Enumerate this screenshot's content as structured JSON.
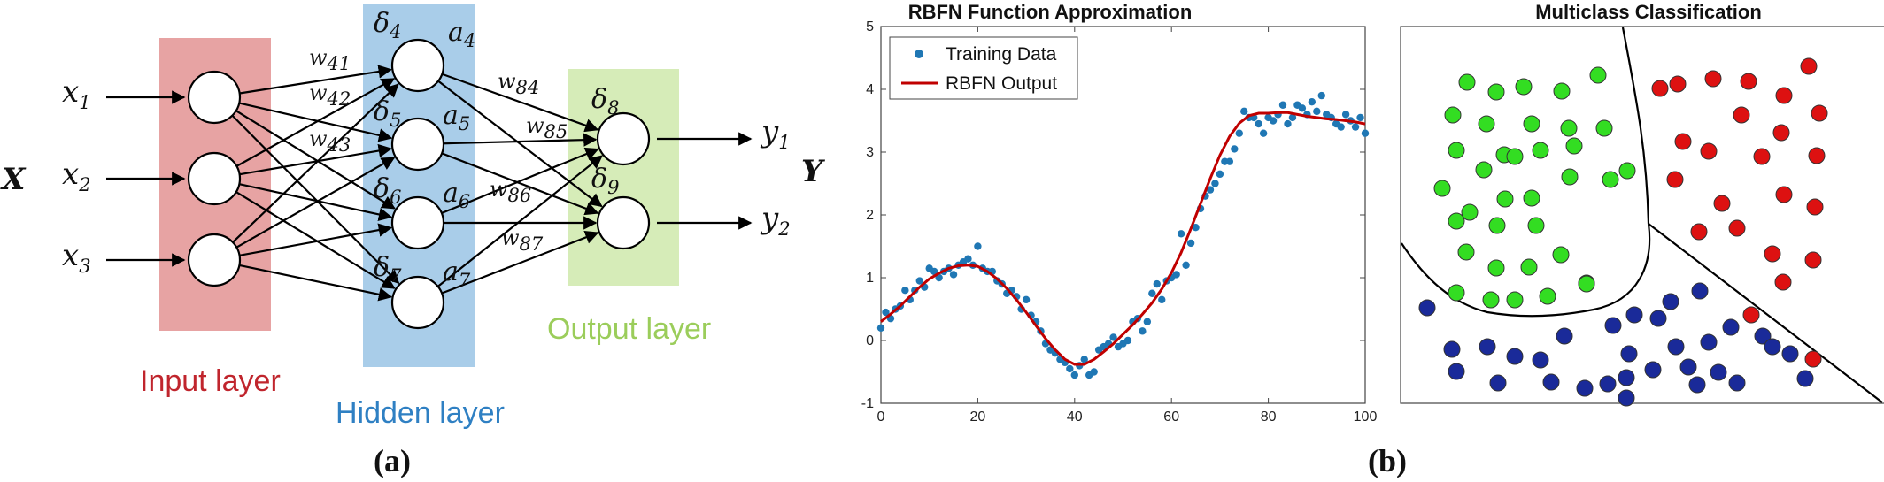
{
  "panel_a": {
    "caption": "(a)",
    "input_label": "Input layer",
    "hidden_label": "Hidden layer",
    "output_label": "Output layer",
    "input_color": "#e7a3a3",
    "hidden_color": "#a9cde9",
    "output_color": "#d6ecb8",
    "input_label_color": "#c0252d",
    "hidden_label_color": "#2f80c3",
    "output_label_color": "#9bcd5b",
    "big_x": "X",
    "big_y": "Y",
    "inputs": [
      {
        "base": "x",
        "sub": "1"
      },
      {
        "base": "x",
        "sub": "2"
      },
      {
        "base": "x",
        "sub": "3"
      }
    ],
    "outputs": [
      {
        "base": "y",
        "sub": "1"
      },
      {
        "base": "y",
        "sub": "2"
      }
    ],
    "deltas": [
      {
        "base": "δ",
        "sub": "4"
      },
      {
        "base": "δ",
        "sub": "5"
      },
      {
        "base": "δ",
        "sub": "6"
      },
      {
        "base": "δ",
        "sub": "7"
      },
      {
        "base": "δ",
        "sub": "8"
      },
      {
        "base": "δ",
        "sub": "9"
      }
    ],
    "activations": [
      {
        "base": "a",
        "sub": "4"
      },
      {
        "base": "a",
        "sub": "5"
      },
      {
        "base": "a",
        "sub": "6"
      },
      {
        "base": "a",
        "sub": "7"
      }
    ],
    "weights": [
      {
        "base": "w",
        "sub": "41"
      },
      {
        "base": "w",
        "sub": "42"
      },
      {
        "base": "w",
        "sub": "43"
      },
      {
        "base": "w",
        "sub": "84"
      },
      {
        "base": "w",
        "sub": "85"
      },
      {
        "base": "w",
        "sub": "86"
      },
      {
        "base": "w",
        "sub": "87"
      }
    ]
  },
  "panel_b": {
    "caption": "(b)",
    "rbfn_title": "RBFN Function Approximation",
    "class_title": "Multiclass Classification",
    "legend": {
      "training": "Training Data",
      "output": "RBFN Output"
    },
    "point_color": "#1f77b4",
    "curve_color": "#c00000",
    "class_colors": {
      "green": "#33dd22",
      "red": "#dd1111",
      "blue": "#1a2a99"
    }
  },
  "chart_data": {
    "type": "line",
    "title": "RBFN Function Approximation",
    "xlim": [
      0,
      100
    ],
    "ylim": [
      -1,
      5
    ],
    "x_ticks": [
      "0",
      "20",
      "40",
      "60",
      "80",
      "100"
    ],
    "y_ticks": [
      "-1",
      "0",
      "1",
      "2",
      "3",
      "4",
      "5"
    ],
    "grid": false,
    "legend_position": "top-left",
    "series": [
      {
        "name": "Training Data",
        "kind": "scatter",
        "x": [
          0,
          1,
          2,
          3,
          4,
          5,
          6,
          7,
          8,
          9,
          10,
          11,
          12,
          13,
          14,
          15,
          16,
          17,
          18,
          19,
          20,
          21,
          22,
          23,
          24,
          25,
          26,
          27,
          28,
          29,
          30,
          31,
          32,
          33,
          34,
          35,
          36,
          37,
          38,
          39,
          40,
          41,
          42,
          43,
          44,
          45,
          46,
          47,
          48,
          49,
          50,
          51,
          52,
          53,
          54,
          55,
          56,
          57,
          58,
          59,
          60,
          61,
          62,
          63,
          64,
          65,
          66,
          67,
          68,
          69,
          70,
          71,
          72,
          73,
          74,
          75,
          76,
          77,
          78,
          79,
          80,
          81,
          82,
          83,
          84,
          85,
          86,
          87,
          88,
          89,
          90,
          91,
          92,
          93,
          94,
          95,
          96,
          97,
          98,
          99,
          100
        ],
        "y": [
          0.2,
          0.45,
          0.35,
          0.5,
          0.55,
          0.8,
          0.65,
          0.8,
          0.95,
          0.85,
          1.15,
          1.1,
          1.0,
          1.1,
          1.15,
          1.05,
          1.2,
          1.25,
          1.3,
          1.2,
          1.5,
          1.15,
          1.1,
          1.1,
          0.95,
          0.9,
          0.75,
          0.8,
          0.7,
          0.5,
          0.65,
          0.4,
          0.3,
          0.15,
          -0.05,
          -0.15,
          -0.2,
          -0.3,
          -0.35,
          -0.45,
          -0.55,
          -0.4,
          -0.3,
          -0.55,
          -0.5,
          -0.15,
          -0.1,
          -0.05,
          0.05,
          -0.1,
          -0.05,
          0.0,
          0.3,
          0.35,
          0.15,
          0.3,
          0.75,
          0.9,
          0.65,
          0.95,
          1.0,
          1.05,
          1.7,
          1.2,
          1.55,
          1.8,
          2.1,
          2.3,
          2.4,
          2.5,
          2.65,
          2.85,
          2.85,
          3.05,
          3.3,
          3.65,
          3.55,
          3.55,
          3.45,
          3.3,
          3.55,
          3.5,
          3.6,
          3.75,
          3.45,
          3.55,
          3.75,
          3.7,
          3.6,
          3.8,
          3.65,
          3.9,
          3.6,
          3.55,
          3.45,
          3.4,
          3.6,
          3.5,
          3.4,
          3.55,
          3.3
        ]
      },
      {
        "name": "RBFN Output",
        "kind": "line",
        "x": [
          0,
          2,
          4,
          6,
          8,
          10,
          12,
          14,
          16,
          18,
          20,
          22,
          24,
          26,
          28,
          30,
          32,
          34,
          36,
          38,
          40,
          42,
          44,
          46,
          48,
          50,
          52,
          54,
          56,
          58,
          60,
          62,
          64,
          66,
          68,
          70,
          72,
          74,
          76,
          78,
          80,
          82,
          84,
          86,
          88,
          90,
          92,
          94,
          96,
          98,
          100
        ],
        "y": [
          0.3,
          0.42,
          0.55,
          0.7,
          0.85,
          0.98,
          1.07,
          1.15,
          1.19,
          1.2,
          1.18,
          1.1,
          0.98,
          0.83,
          0.65,
          0.45,
          0.24,
          0.03,
          -0.15,
          -0.3,
          -0.38,
          -0.38,
          -0.3,
          -0.18,
          -0.05,
          0.1,
          0.25,
          0.42,
          0.6,
          0.82,
          1.08,
          1.4,
          1.78,
          2.18,
          2.58,
          2.95,
          3.25,
          3.46,
          3.58,
          3.62,
          3.62,
          3.63,
          3.63,
          3.6,
          3.57,
          3.55,
          3.53,
          3.52,
          3.5,
          3.48,
          3.45
        ]
      }
    ]
  }
}
